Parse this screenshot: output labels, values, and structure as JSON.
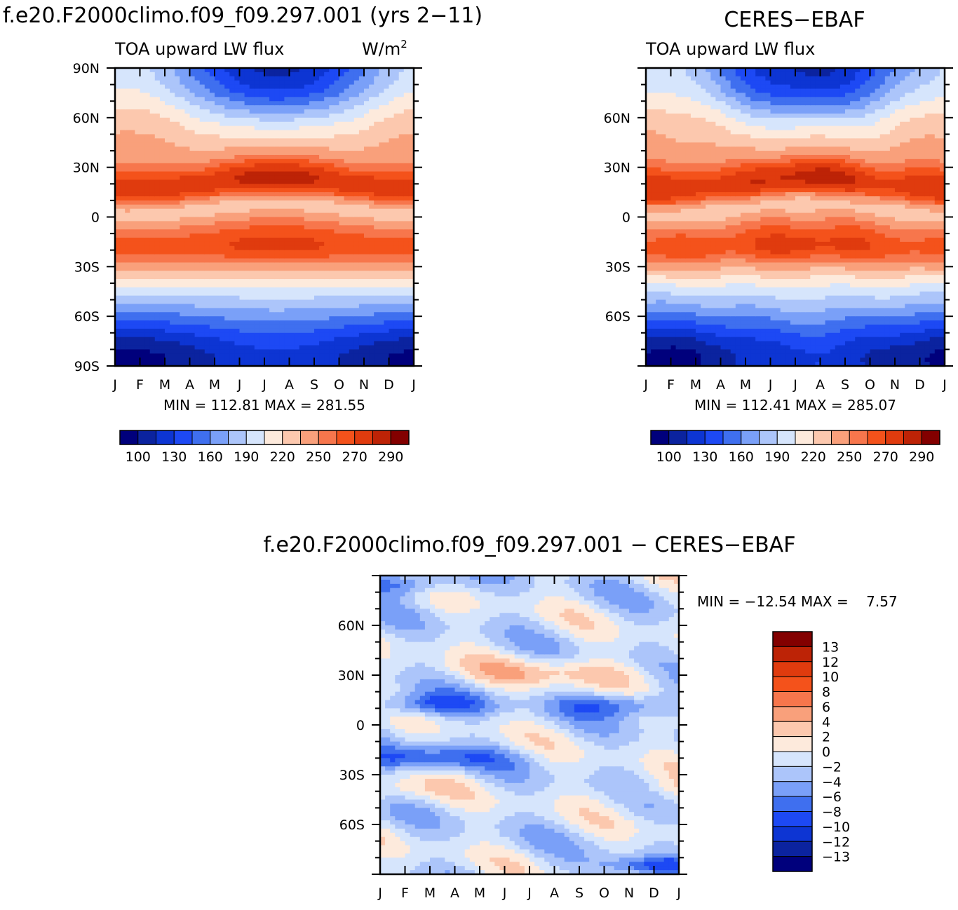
{
  "figure": {
    "panel1_title": "f.e20.F2000climo.f09_f09.297.001 (yrs 2−11)",
    "panel1_left_label": "TOA upward LW flux",
    "panel1_units_base": "W/m",
    "panel1_units_sup": "2",
    "panel1_stats": "MIN = 112.81 MAX = 281.55",
    "panel2_title": "CERES−EBAF",
    "panel2_left_label": "TOA upward LW flux",
    "panel2_stats": "MIN = 112.41 MAX = 285.07",
    "panel3_title": "f.e20.F2000climo.f09_f09.297.001 − CERES−EBAF",
    "panel3_stats": "MIN = −12.54 MAX =    7.57"
  },
  "chart_data": [
    {
      "type": "heatmap",
      "title": "f.e20.F2000climo.f09_f09.297.001 (yrs 2−11)",
      "subtitle": "TOA upward LW flux",
      "units": "W/m2",
      "x_ticks": [
        "J",
        "F",
        "M",
        "A",
        "M",
        "J",
        "J",
        "A",
        "S",
        "O",
        "N",
        "D",
        "J"
      ],
      "y_ticks": [
        "90N",
        "60N",
        "30N",
        "0",
        "30S",
        "60S",
        "90S"
      ],
      "ylim": [
        -90,
        90
      ],
      "min": 112.81,
      "max": 281.55,
      "colorbar_labels": [
        "100",
        "130",
        "160",
        "190",
        "220",
        "250",
        "270",
        "290"
      ],
      "colors": [
        "#00007c",
        "#0b239f",
        "#0d35d3",
        "#1d49f4",
        "#3f6fef",
        "#7aa0f8",
        "#acc5fa",
        "#d6e5fc",
        "#fdeadc",
        "#fcc8ae",
        "#f9a07b",
        "#f7764c",
        "#f4521b",
        "#e03b0e",
        "#bd2306",
        "#830000"
      ],
      "levels": [
        100,
        130,
        160,
        190,
        220,
        250,
        270,
        290
      ]
    },
    {
      "type": "heatmap",
      "title": "CERES−EBAF",
      "subtitle": "TOA upward LW flux",
      "x_ticks": [
        "J",
        "F",
        "M",
        "A",
        "M",
        "J",
        "J",
        "A",
        "S",
        "O",
        "N",
        "D",
        "J"
      ],
      "y_ticks": [
        "60N",
        "30N",
        "0",
        "30S",
        "60S"
      ],
      "ylim": [
        -90,
        90
      ],
      "min": 112.41,
      "max": 285.07,
      "colorbar_labels": [
        "100",
        "130",
        "160",
        "190",
        "220",
        "250",
        "270",
        "290"
      ]
    },
    {
      "type": "heatmap",
      "title": "f.e20.F2000climo.f09_f09.297.001 − CERES−EBAF",
      "x_ticks": [
        "J",
        "F",
        "M",
        "A",
        "M",
        "J",
        "J",
        "A",
        "S",
        "O",
        "N",
        "D",
        "J"
      ],
      "y_ticks": [
        "60N",
        "30N",
        "0",
        "30S",
        "60S"
      ],
      "ylim": [
        -90,
        90
      ],
      "min": -12.54,
      "max": 7.57,
      "colorbar_labels": [
        "13",
        "12",
        "10",
        "8",
        "6",
        "4",
        "2",
        "0",
        "−2",
        "−4",
        "−6",
        "−8",
        "−10",
        "−12",
        "−13"
      ],
      "colors": [
        "#830000",
        "#bd2306",
        "#e03b0e",
        "#f4521b",
        "#f7764c",
        "#f9a07b",
        "#fcc8ae",
        "#fdeadc",
        "#d6e5fc",
        "#acc5fa",
        "#7aa0f8",
        "#3f6fef",
        "#1d49f4",
        "#0d35d3",
        "#0b239f",
        "#00007c"
      ]
    }
  ]
}
